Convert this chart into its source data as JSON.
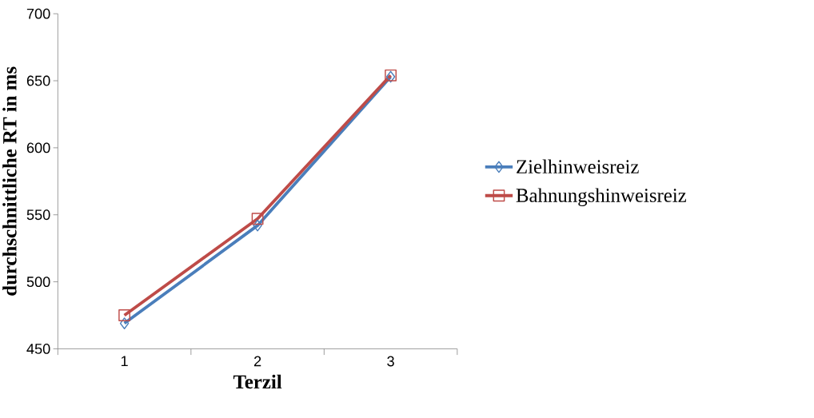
{
  "chart_data": {
    "type": "line",
    "xlabel": "Terzil",
    "ylabel": "durchschnittliche RT in ms",
    "categories": [
      "1",
      "2",
      "3"
    ],
    "ylim": [
      450,
      700
    ],
    "yticks": [
      450,
      500,
      550,
      600,
      650,
      700
    ],
    "legend": "right",
    "grid": false,
    "line_style": "solid",
    "series": [
      {
        "name": "Zielhinweisreiz",
        "color": "#4a7ebb",
        "marker": "diamond",
        "values": [
          469,
          542,
          653
        ]
      },
      {
        "name": "Bahnungshinweisreiz",
        "color": "#be4b48",
        "marker": "square",
        "values": [
          475,
          547,
          654
        ]
      }
    ]
  }
}
